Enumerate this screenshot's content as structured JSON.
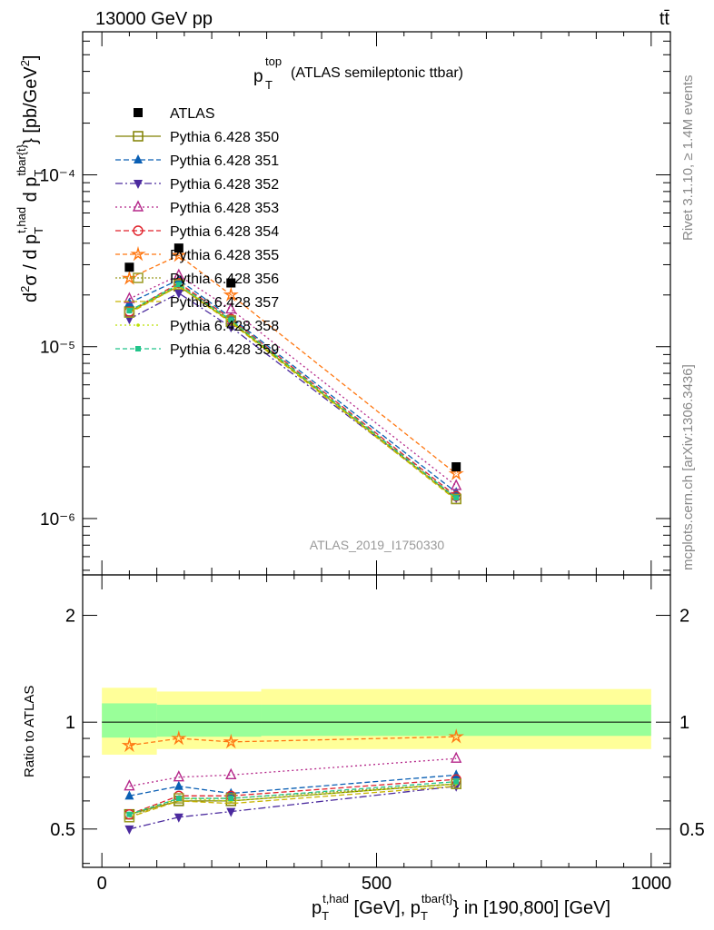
{
  "header": {
    "energy_label": "13000 GeV pp",
    "process_label": "tt̄",
    "plot_title_main": "p",
    "plot_title_sup": "top",
    "plot_title_sub": "T",
    "plot_title_rest": "(ATLAS semileptonic ttbar)",
    "analysis_id": "ATLAS_2019_I1750330",
    "rivet_label": "Rivet 3.1.10, ≥ 1.4M events",
    "mcplots_label": "mcplots.cern.ch [arXiv:1306.3436]"
  },
  "axes": {
    "ylabel_main": "d²σ / d p_T^{t,had} d p_T^{tbar{t}} [pb/GeV²]",
    "ylabel_ratio": "Ratio to ATLAS",
    "xlabel": "p_T^{t,had} [GeV], p_T^{tbar{t}} in [190,800] [GeV]",
    "y_ticks_main": [
      "10⁻⁶",
      "10⁻⁵",
      "10⁻⁴"
    ],
    "y_ticks_ratio": [
      "0.5",
      "1",
      "2"
    ],
    "x_ticks": [
      "0",
      "500",
      "1000"
    ]
  },
  "chart_data": {
    "type": "scatter",
    "x": [
      50,
      140,
      235,
      645
    ],
    "xlim": [
      -35,
      1035
    ],
    "xscale": "linear",
    "main": {
      "yscale": "log",
      "ylim": [
        4.7e-07,
        0.00068
      ],
      "data": {
        "name": "ATLAS",
        "values": [
          2.9e-05,
          3.75e-05,
          2.35e-05,
          2e-06
        ],
        "color": "#000000"
      },
      "legend_position": "top-left"
    },
    "ratio": {
      "yscale": "log",
      "ylim": [
        0.39,
        2.6
      ],
      "bands": [
        {
          "color": "#ffff99",
          "segments": [
            [
              0,
              100,
              0.81,
              1.25
            ],
            [
              100,
              290,
              0.84,
              1.22
            ],
            [
              290,
              1000,
              0.84,
              1.24
            ]
          ]
        },
        {
          "color": "#99ff99",
          "segments": [
            [
              0,
              100,
              0.905,
              1.13
            ],
            [
              100,
              290,
              0.91,
              1.12
            ],
            [
              290,
              1000,
              0.915,
              1.12
            ]
          ]
        }
      ]
    },
    "series": [
      {
        "name": "Pythia 6.428 350",
        "color": "#808000",
        "marker": "square-open",
        "dash": "solid",
        "main": [
          1.6e-05,
          2.25e-05,
          1.4e-05,
          1.3e-06
        ],
        "ratio": [
          0.55,
          0.6,
          0.6,
          0.67
        ]
      },
      {
        "name": "Pythia 6.428 351",
        "color": "#0a5fb4",
        "marker": "triangle-up-filled",
        "dash": "6,3",
        "main": [
          1.8e-05,
          2.45e-05,
          1.48e-05,
          1.42e-06
        ],
        "ratio": [
          0.62,
          0.66,
          0.63,
          0.71
        ]
      },
      {
        "name": "Pythia 6.428 352",
        "color": "#4b2a9e",
        "marker": "triangle-down-filled",
        "dash": "8,3,2,3",
        "main": [
          1.45e-05,
          2.05e-05,
          1.3e-05,
          1.32e-06
        ],
        "ratio": [
          0.5,
          0.54,
          0.56,
          0.66
        ]
      },
      {
        "name": "Pythia 6.428 353",
        "color": "#b5288a",
        "marker": "triangle-up-open",
        "dash": "2,3",
        "main": [
          1.9e-05,
          2.6e-05,
          1.65e-05,
          1.55e-06
        ],
        "ratio": [
          0.66,
          0.7,
          0.71,
          0.79
        ]
      },
      {
        "name": "Pythia 6.428 354",
        "color": "#e0222b",
        "marker": "circle-open",
        "dash": "6,3",
        "main": [
          1.6e-05,
          2.35e-05,
          1.45e-05,
          1.35e-06
        ],
        "ratio": [
          0.55,
          0.62,
          0.62,
          0.69
        ]
      },
      {
        "name": "Pythia 6.428 355",
        "color": "#ff7711",
        "marker": "star-open",
        "dash": "5,3",
        "main": [
          2.5e-05,
          3.4e-05,
          2e-05,
          1.82e-06
        ],
        "ratio": [
          0.86,
          0.9,
          0.88,
          0.91
        ]
      },
      {
        "name": "Pythia 6.428 356",
        "color": "#9a9a22",
        "marker": "square-open",
        "dash": "2,2",
        "main": [
          1.58e-05,
          2.3e-05,
          1.42e-05,
          1.3e-06
        ],
        "ratio": [
          0.54,
          0.61,
          0.61,
          0.67
        ]
      },
      {
        "name": "Pythia 6.428 357",
        "color": "#c8b400",
        "marker": "none",
        "dash": "6,3",
        "main": [
          1.57e-05,
          2.25e-05,
          1.38e-05,
          1.28e-06
        ],
        "ratio": [
          0.54,
          0.6,
          0.59,
          0.66
        ]
      },
      {
        "name": "Pythia 6.428 358",
        "color": "#bbe000",
        "marker": "dot",
        "dash": "2,3",
        "main": [
          1.6e-05,
          2.28e-05,
          1.4e-05,
          1.3e-06
        ],
        "ratio": [
          0.55,
          0.61,
          0.6,
          0.67
        ]
      },
      {
        "name": "Pythia 6.428 359",
        "color": "#22c48a",
        "marker": "square-filled-small",
        "dash": "5,3",
        "main": [
          1.62e-05,
          2.3e-05,
          1.43e-05,
          1.32e-06
        ],
        "ratio": [
          0.55,
          0.61,
          0.61,
          0.68
        ]
      }
    ]
  }
}
